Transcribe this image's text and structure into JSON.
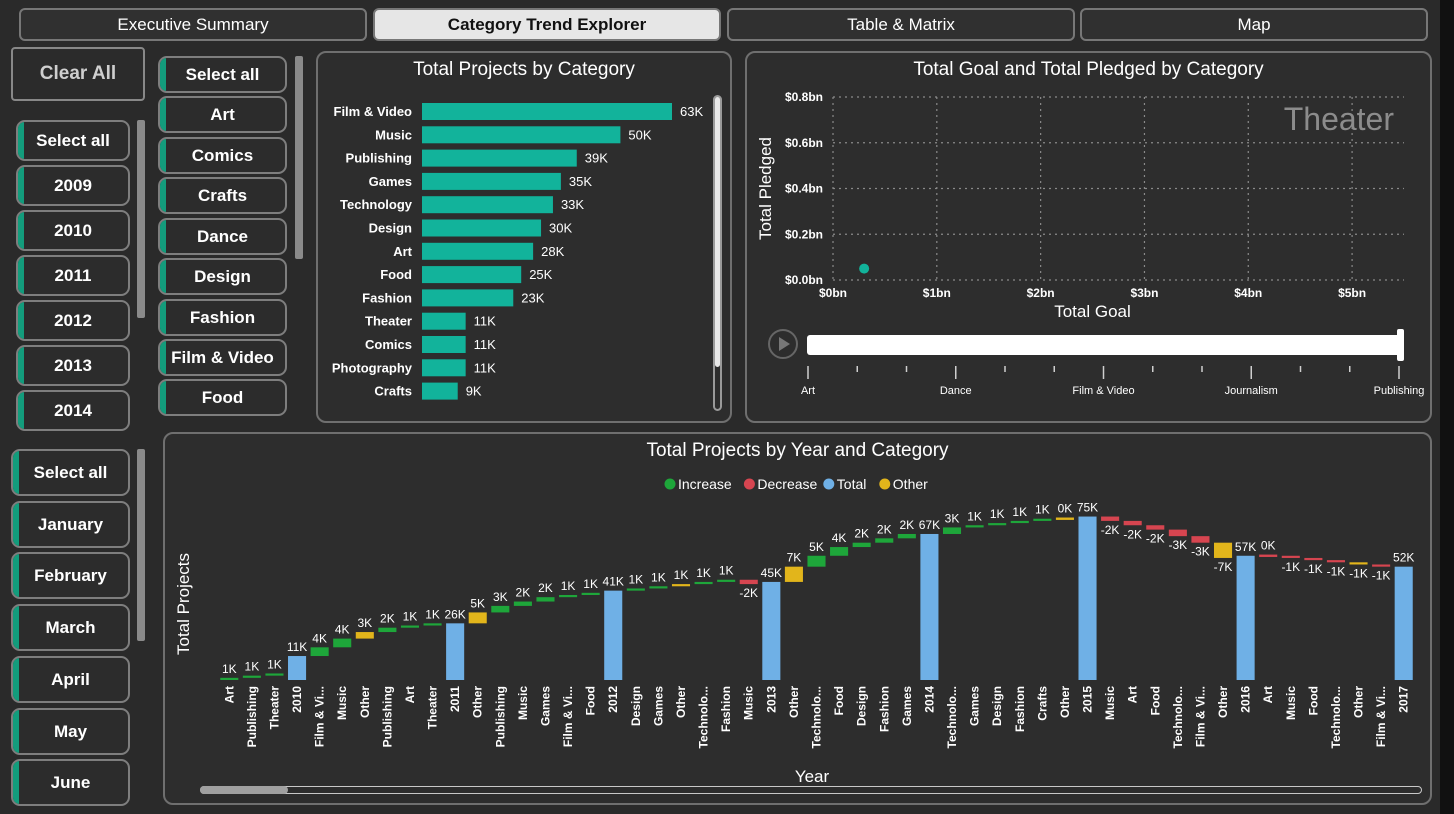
{
  "tabs": [
    {
      "label": "Executive Summary",
      "active": false
    },
    {
      "label": "Category Trend Explorer",
      "active": true
    },
    {
      "label": "Table & Matrix",
      "active": false
    },
    {
      "label": "Map",
      "active": false
    }
  ],
  "clear_all_label": "Clear All",
  "year_slicer": [
    "Select all",
    "2009",
    "2010",
    "2011",
    "2012",
    "2013",
    "2014"
  ],
  "category_slicer": [
    "Select all",
    "Art",
    "Comics",
    "Crafts",
    "Dance",
    "Design",
    "Fashion",
    "Film & Video",
    "Food"
  ],
  "month_slicer": [
    "Select all",
    "January",
    "February",
    "March",
    "April",
    "May",
    "June"
  ],
  "colors": {
    "bar": "#12b39b",
    "increase": "#1ea63a",
    "decrease": "#d64550",
    "total": "#6fb0e6",
    "other": "#e2b51b",
    "accent": "#139c7c"
  },
  "bar_chart": {
    "title": "Total Projects by Category",
    "chart_data": {
      "type": "bar",
      "categories": [
        "Film & Video",
        "Music",
        "Publishing",
        "Games",
        "Technology",
        "Design",
        "Art",
        "Food",
        "Fashion",
        "Theater",
        "Comics",
        "Photography",
        "Crafts"
      ],
      "values": [
        63,
        50,
        39,
        35,
        33,
        30,
        28,
        25,
        23,
        11,
        11,
        11,
        9
      ],
      "labels": [
        "63K",
        "50K",
        "39K",
        "35K",
        "33K",
        "30K",
        "28K",
        "25K",
        "23K",
        "11K",
        "11K",
        "11K",
        "9K"
      ],
      "unit": "K"
    }
  },
  "scatter_chart": {
    "title": "Total Goal and Total Pledged by Category",
    "xlabel": "Total Goal",
    "ylabel": "Total Pledged",
    "watermark": "Theater",
    "chart_data": {
      "type": "scatter",
      "x_ticks": [
        "$0bn",
        "$1bn",
        "$2bn",
        "$3bn",
        "$4bn",
        "$5bn"
      ],
      "y_ticks": [
        "$0.0bn",
        "$0.2bn",
        "$0.4bn",
        "$0.6bn",
        "$0.8bn"
      ],
      "xlim": [
        0,
        5.5
      ],
      "ylim": [
        0,
        0.8
      ],
      "points": [
        {
          "x": 0.3,
          "y": 0.05
        }
      ]
    },
    "play_axis": {
      "labels": [
        "Art",
        "Dance",
        "Film & Video",
        "Journalism",
        "Publishing"
      ],
      "progress": 1.0
    }
  },
  "waterfall_chart": {
    "title": "Total Projects by Year and Category",
    "xlabel": "Year",
    "ylabel": "Total Projects",
    "legend": [
      {
        "name": "Increase",
        "color_key": "increase"
      },
      {
        "name": "Decrease",
        "color_key": "decrease"
      },
      {
        "name": "Total",
        "color_key": "total"
      },
      {
        "name": "Other",
        "color_key": "other"
      }
    ],
    "chart_data": {
      "type": "waterfall",
      "ymax": 78,
      "steps": [
        {
          "label": "Art",
          "kind": "increase",
          "delta": 1,
          "text": "1K"
        },
        {
          "label": "Publishing",
          "kind": "increase",
          "delta": 1,
          "text": "1K"
        },
        {
          "label": "Theater",
          "kind": "increase",
          "delta": 1,
          "text": "1K"
        },
        {
          "label": "2010",
          "kind": "total",
          "value": 11,
          "text": "11K"
        },
        {
          "label": "Film & Vi...",
          "kind": "increase",
          "delta": 4,
          "text": "4K"
        },
        {
          "label": "Music",
          "kind": "increase",
          "delta": 4,
          "text": "4K"
        },
        {
          "label": "Other",
          "kind": "other",
          "delta": 3,
          "text": "3K"
        },
        {
          "label": "Publishing",
          "kind": "increase",
          "delta": 2,
          "text": "2K"
        },
        {
          "label": "Art",
          "kind": "increase",
          "delta": 1,
          "text": "1K"
        },
        {
          "label": "Theater",
          "kind": "increase",
          "delta": 1,
          "text": "1K"
        },
        {
          "label": "2011",
          "kind": "total",
          "value": 26,
          "text": "26K"
        },
        {
          "label": "Other",
          "kind": "other",
          "delta": 5,
          "text": "5K"
        },
        {
          "label": "Publishing",
          "kind": "increase",
          "delta": 3,
          "text": "3K"
        },
        {
          "label": "Music",
          "kind": "increase",
          "delta": 2,
          "text": "2K"
        },
        {
          "label": "Games",
          "kind": "increase",
          "delta": 2,
          "text": "2K"
        },
        {
          "label": "Film & Vi...",
          "kind": "increase",
          "delta": 1,
          "text": "1K"
        },
        {
          "label": "Food",
          "kind": "increase",
          "delta": 1,
          "text": "1K"
        },
        {
          "label": "2012",
          "kind": "total",
          "value": 41,
          "text": "41K"
        },
        {
          "label": "Design",
          "kind": "increase",
          "delta": 1,
          "text": "1K"
        },
        {
          "label": "Games",
          "kind": "increase",
          "delta": 1,
          "text": "1K"
        },
        {
          "label": "Other",
          "kind": "other",
          "delta": 1,
          "text": "1K"
        },
        {
          "label": "Technolo...",
          "kind": "increase",
          "delta": 1,
          "text": "1K"
        },
        {
          "label": "Fashion",
          "kind": "increase",
          "delta": 1,
          "text": "1K"
        },
        {
          "label": "Music",
          "kind": "decrease",
          "delta": -2,
          "text": "-2K"
        },
        {
          "label": "2013",
          "kind": "total",
          "value": 45,
          "text": "45K"
        },
        {
          "label": "Other",
          "kind": "other",
          "delta": 7,
          "text": "7K"
        },
        {
          "label": "Technolo...",
          "kind": "increase",
          "delta": 5,
          "text": "5K"
        },
        {
          "label": "Food",
          "kind": "increase",
          "delta": 4,
          "text": "4K"
        },
        {
          "label": "Design",
          "kind": "increase",
          "delta": 2,
          "text": "2K"
        },
        {
          "label": "Fashion",
          "kind": "increase",
          "delta": 2,
          "text": "2K"
        },
        {
          "label": "Games",
          "kind": "increase",
          "delta": 2,
          "text": "2K"
        },
        {
          "label": "2014",
          "kind": "total",
          "value": 67,
          "text": "67K"
        },
        {
          "label": "Technolo...",
          "kind": "increase",
          "delta": 3,
          "text": "3K"
        },
        {
          "label": "Games",
          "kind": "increase",
          "delta": 1,
          "text": "1K"
        },
        {
          "label": "Design",
          "kind": "increase",
          "delta": 1,
          "text": "1K"
        },
        {
          "label": "Fashion",
          "kind": "increase",
          "delta": 1,
          "text": "1K"
        },
        {
          "label": "Crafts",
          "kind": "increase",
          "delta": 1,
          "text": "1K"
        },
        {
          "label": "Other",
          "kind": "other",
          "delta": 0,
          "text": "0K"
        },
        {
          "label": "2015",
          "kind": "total",
          "value": 75,
          "text": "75K"
        },
        {
          "label": "Music",
          "kind": "decrease",
          "delta": -2,
          "text": "-2K"
        },
        {
          "label": "Art",
          "kind": "decrease",
          "delta": -2,
          "text": "-2K"
        },
        {
          "label": "Food",
          "kind": "decrease",
          "delta": -2,
          "text": "-2K"
        },
        {
          "label": "Technolo...",
          "kind": "decrease",
          "delta": -3,
          "text": "-3K"
        },
        {
          "label": "Film & Vi...",
          "kind": "decrease",
          "delta": -3,
          "text": "-3K"
        },
        {
          "label": "Other",
          "kind": "other",
          "delta": -7,
          "text": "-7K"
        },
        {
          "label": "2016",
          "kind": "total",
          "value": 57,
          "text": "57K"
        },
        {
          "label": "Art",
          "kind": "decrease",
          "delta": 0,
          "text": "0K"
        },
        {
          "label": "Music",
          "kind": "decrease",
          "delta": -1,
          "text": "-1K"
        },
        {
          "label": "Food",
          "kind": "decrease",
          "delta": -1,
          "text": "-1K"
        },
        {
          "label": "Technolo...",
          "kind": "decrease",
          "delta": -1,
          "text": "-1K"
        },
        {
          "label": "Other",
          "kind": "other",
          "delta": -1,
          "text": "-1K"
        },
        {
          "label": "Film & Vi...",
          "kind": "decrease",
          "delta": -1,
          "text": "-1K"
        },
        {
          "label": "2017",
          "kind": "total",
          "value": 52,
          "text": "52K"
        }
      ]
    }
  }
}
